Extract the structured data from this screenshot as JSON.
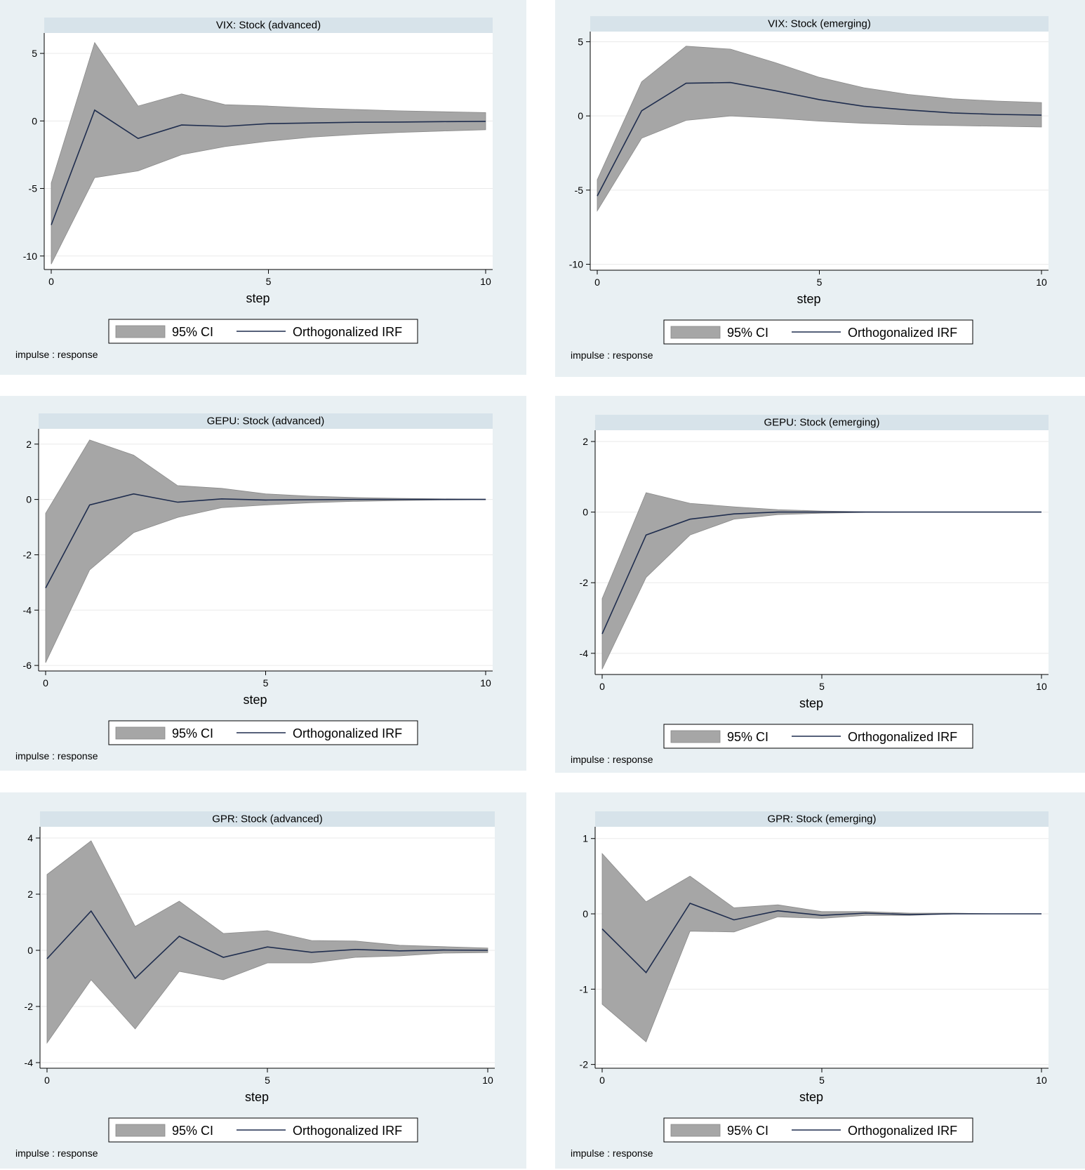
{
  "chart_data": [
    {
      "type": "area",
      "title": "VIX: Stock (advanced)",
      "xlabel": "step",
      "note": "impulse : response",
      "xlim": [
        0,
        10
      ],
      "ylim": [
        -11,
        6.2
      ],
      "xticks": [
        0,
        5,
        10
      ],
      "yticks": [
        5,
        0,
        -5,
        -10
      ],
      "x": [
        0,
        1,
        2,
        3,
        4,
        5,
        6,
        7,
        8,
        9,
        10
      ],
      "series": [
        {
          "name": "Orthogonalized IRF",
          "values": [
            -7.7,
            0.8,
            -1.3,
            -0.3,
            -0.4,
            -0.2,
            -0.15,
            -0.1,
            -0.08,
            -0.05,
            -0.03
          ]
        },
        {
          "name": "95% CI",
          "lower": [
            -10.6,
            -4.2,
            -3.7,
            -2.5,
            -1.9,
            -1.5,
            -1.2,
            -1.0,
            -0.85,
            -0.75,
            -0.65
          ],
          "upper": [
            -4.6,
            5.8,
            1.1,
            2.0,
            1.2,
            1.1,
            0.95,
            0.85,
            0.75,
            0.68,
            0.62
          ]
        }
      ],
      "legend": [
        "95% CI",
        "Orthogonalized IRF"
      ],
      "legend_placement": "bottom",
      "grid": true
    },
    {
      "type": "area",
      "title": "VIX: Stock (emerging)",
      "xlabel": "step",
      "note": "impulse : response",
      "xlim": [
        0,
        10
      ],
      "ylim": [
        -10.4,
        5.4
      ],
      "xticks": [
        0,
        5,
        10
      ],
      "yticks": [
        5,
        0,
        -5,
        -10
      ],
      "x": [
        0,
        1,
        2,
        3,
        4,
        5,
        6,
        7,
        8,
        9,
        10
      ],
      "series": [
        {
          "name": "Orthogonalized IRF",
          "values": [
            -5.4,
            0.35,
            2.2,
            2.25,
            1.7,
            1.1,
            0.65,
            0.4,
            0.2,
            0.1,
            0.05
          ]
        },
        {
          "name": "95% CI",
          "lower": [
            -6.4,
            -1.5,
            -0.3,
            0.0,
            -0.15,
            -0.35,
            -0.5,
            -0.6,
            -0.65,
            -0.7,
            -0.75
          ],
          "upper": [
            -4.3,
            2.3,
            4.7,
            4.5,
            3.6,
            2.6,
            1.9,
            1.45,
            1.15,
            1.0,
            0.9
          ]
        }
      ],
      "legend": [
        "95% CI",
        "Orthogonalized IRF"
      ],
      "legend_placement": "bottom",
      "grid": true
    },
    {
      "type": "area",
      "title": "GEPU: Stock (advanced)",
      "xlabel": "step",
      "note": "impulse : response",
      "xlim": [
        0,
        10
      ],
      "ylim": [
        -6.2,
        2.4
      ],
      "xticks": [
        0,
        5,
        10
      ],
      "yticks": [
        2,
        0,
        -2,
        -4,
        -6
      ],
      "x": [
        0,
        1,
        2,
        3,
        4,
        5,
        6,
        7,
        8,
        9,
        10
      ],
      "series": [
        {
          "name": "Orthogonalized IRF",
          "values": [
            -3.2,
            -0.2,
            0.2,
            -0.1,
            0.02,
            -0.02,
            -0.01,
            0.0,
            0.0,
            0.0,
            0.0
          ]
        },
        {
          "name": "95% CI",
          "lower": [
            -5.9,
            -2.55,
            -1.2,
            -0.65,
            -0.3,
            -0.2,
            -0.12,
            -0.07,
            -0.04,
            -0.02,
            -0.01
          ],
          "upper": [
            -0.5,
            2.15,
            1.6,
            0.5,
            0.4,
            0.2,
            0.12,
            0.07,
            0.04,
            0.02,
            0.01
          ]
        }
      ],
      "legend": [
        "95% CI",
        "Orthogonalized IRF"
      ],
      "legend_placement": "bottom",
      "grid": true
    },
    {
      "type": "area",
      "title": "GEPU: Stock (emerging)",
      "xlabel": "step",
      "note": "impulse : response",
      "xlim": [
        0,
        10
      ],
      "ylim": [
        -4.6,
        2.2
      ],
      "xticks": [
        0,
        5,
        10
      ],
      "yticks": [
        2,
        0,
        -2,
        -4
      ],
      "x": [
        0,
        1,
        2,
        3,
        4,
        5,
        6,
        7,
        8,
        9,
        10
      ],
      "series": [
        {
          "name": "Orthogonalized IRF",
          "values": [
            -3.45,
            -0.65,
            -0.2,
            -0.05,
            0.0,
            0.0,
            0.0,
            0.0,
            0.0,
            0.0,
            0.0
          ]
        },
        {
          "name": "95% CI",
          "lower": [
            -4.45,
            -1.85,
            -0.65,
            -0.2,
            -0.07,
            -0.03,
            -0.01,
            0.0,
            0.0,
            0.0,
            0.0
          ],
          "upper": [
            -2.45,
            0.55,
            0.25,
            0.15,
            0.07,
            0.03,
            0.01,
            0.0,
            0.0,
            0.0,
            0.0
          ]
        }
      ],
      "legend": [
        "95% CI",
        "Orthogonalized IRF"
      ],
      "legend_placement": "bottom",
      "grid": true
    },
    {
      "type": "area",
      "title": "GPR: Stock (advanced)",
      "xlabel": "step",
      "note": "impulse : response",
      "xlim": [
        0,
        10
      ],
      "ylim": [
        -4.2,
        4.25
      ],
      "xticks": [
        0,
        5,
        10
      ],
      "yticks": [
        4,
        2,
        0,
        -2,
        -4
      ],
      "x": [
        0,
        1,
        2,
        3,
        4,
        5,
        6,
        7,
        8,
        9,
        10
      ],
      "series": [
        {
          "name": "Orthogonalized IRF",
          "values": [
            -0.3,
            1.4,
            -1.0,
            0.5,
            -0.25,
            0.12,
            -0.07,
            0.03,
            -0.02,
            0.01,
            0.0
          ]
        },
        {
          "name": "95% CI",
          "lower": [
            -3.3,
            -1.05,
            -2.8,
            -0.75,
            -1.05,
            -0.45,
            -0.45,
            -0.25,
            -0.2,
            -0.1,
            -0.08
          ],
          "upper": [
            2.7,
            3.9,
            0.85,
            1.75,
            0.6,
            0.7,
            0.35,
            0.33,
            0.18,
            0.13,
            0.08
          ]
        }
      ],
      "legend": [
        "95% CI",
        "Orthogonalized IRF"
      ],
      "legend_placement": "bottom",
      "grid": true
    },
    {
      "type": "area",
      "title": "GPR: Stock (emerging)",
      "xlabel": "step",
      "note": "impulse : response",
      "xlim": [
        0,
        10
      ],
      "ylim": [
        -2.05,
        1.1
      ],
      "xticks": [
        0,
        5,
        10
      ],
      "yticks": [
        1,
        0,
        -1,
        -2
      ],
      "x": [
        0,
        1,
        2,
        3,
        4,
        5,
        6,
        7,
        8,
        9,
        10
      ],
      "series": [
        {
          "name": "Orthogonalized IRF",
          "values": [
            -0.2,
            -0.78,
            0.14,
            -0.08,
            0.04,
            -0.02,
            0.01,
            -0.01,
            0.0,
            0.0,
            0.0
          ]
        },
        {
          "name": "95% CI",
          "lower": [
            -1.2,
            -1.7,
            -0.23,
            -0.24,
            -0.04,
            -0.06,
            -0.02,
            -0.02,
            0.0,
            0.0,
            0.0
          ],
          "upper": [
            0.8,
            0.16,
            0.5,
            0.08,
            0.12,
            0.03,
            0.03,
            0.01,
            0.01,
            0.0,
            0.0
          ]
        }
      ],
      "legend": [
        "95% CI",
        "Orthogonalized IRF"
      ],
      "legend_placement": "bottom",
      "grid": true
    }
  ],
  "colors": {
    "panel_bg": "#e9f0f3",
    "title_strip": "#d7e3ea",
    "ci_fill": "#a6a6a6",
    "ci_edge": "#8a8a8a",
    "irf_line": "#1f2d4e",
    "grid": "#eaeaea",
    "axis": "#000000"
  }
}
